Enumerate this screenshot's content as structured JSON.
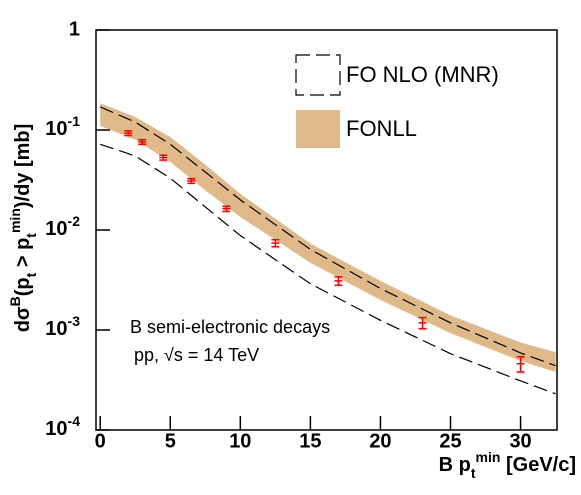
{
  "chart_data": {
    "type": "band-log",
    "ylabel_parts": [
      {
        "text": "dσ"
      },
      {
        "text": "B",
        "shift": "super"
      },
      {
        "text": "(p"
      },
      {
        "text": "t",
        "shift": "sub"
      },
      {
        "text": " > p"
      },
      {
        "text": "t",
        "shift": "sub"
      },
      {
        "text": "min",
        "shift": "super"
      },
      {
        "text": ")/dy [mb]"
      }
    ],
    "xlabel_parts": [
      {
        "text": "B p"
      },
      {
        "text": "t",
        "shift": "sub"
      },
      {
        "text": "min",
        "shift": "super"
      },
      {
        "text": " [GeV/c]"
      }
    ],
    "annotations": [
      "B semi-electronic decays",
      "pp, √s = 14 TeV"
    ],
    "log_y": true,
    "xlim": [
      -0.3,
      32.6
    ],
    "ylim": [
      0.0001,
      1
    ],
    "xticks": [
      0,
      5,
      10,
      15,
      20,
      25,
      30
    ],
    "yticks": [
      {
        "value": 0.0001,
        "label": "10",
        "exponent": "-4"
      },
      {
        "value": 0.001,
        "label": "10",
        "exponent": "-3"
      },
      {
        "value": 0.01,
        "label": "10",
        "exponent": "-2"
      },
      {
        "value": 0.1,
        "label": "10",
        "exponent": "-1"
      },
      1
    ],
    "x": [
      0,
      2.5,
      5,
      7.5,
      10,
      15,
      20,
      25,
      30,
      32.5
    ],
    "series": [
      {
        "name": "FONLL",
        "style": "band",
        "color": "#dfba88",
        "upper": [
          0.185,
          0.135,
          0.085,
          0.045,
          0.023,
          0.0073,
          0.0031,
          0.0014,
          0.00075,
          0.0006
        ],
        "lower": [
          0.11,
          0.08,
          0.048,
          0.025,
          0.0135,
          0.0047,
          0.002,
          0.00093,
          0.00049,
          0.00038
        ]
      },
      {
        "name": "FO NLO (MNR)",
        "style": "dashed",
        "color": "#000000",
        "upper": [
          0.17,
          0.12,
          0.072,
          0.038,
          0.02,
          0.0064,
          0.0026,
          0.00118,
          0.00059,
          0.00044
        ],
        "lower": [
          0.072,
          0.055,
          0.033,
          0.017,
          0.0088,
          0.0029,
          0.00125,
          0.00058,
          0.00031,
          0.00023
        ]
      }
    ],
    "points": {
      "color": "#ff0000",
      "x": [
        2,
        3,
        4.5,
        6.5,
        9,
        12.5,
        17,
        23,
        30
      ],
      "values": [
        0.093,
        0.076,
        0.053,
        0.031,
        0.0163,
        0.0074,
        0.0031,
        0.00118,
        0.00046
      ],
      "errors": [
        0.005,
        0.004,
        0.003,
        0.0017,
        0.001,
        0.0006,
        0.0003,
        0.00015,
        8e-05
      ]
    }
  }
}
